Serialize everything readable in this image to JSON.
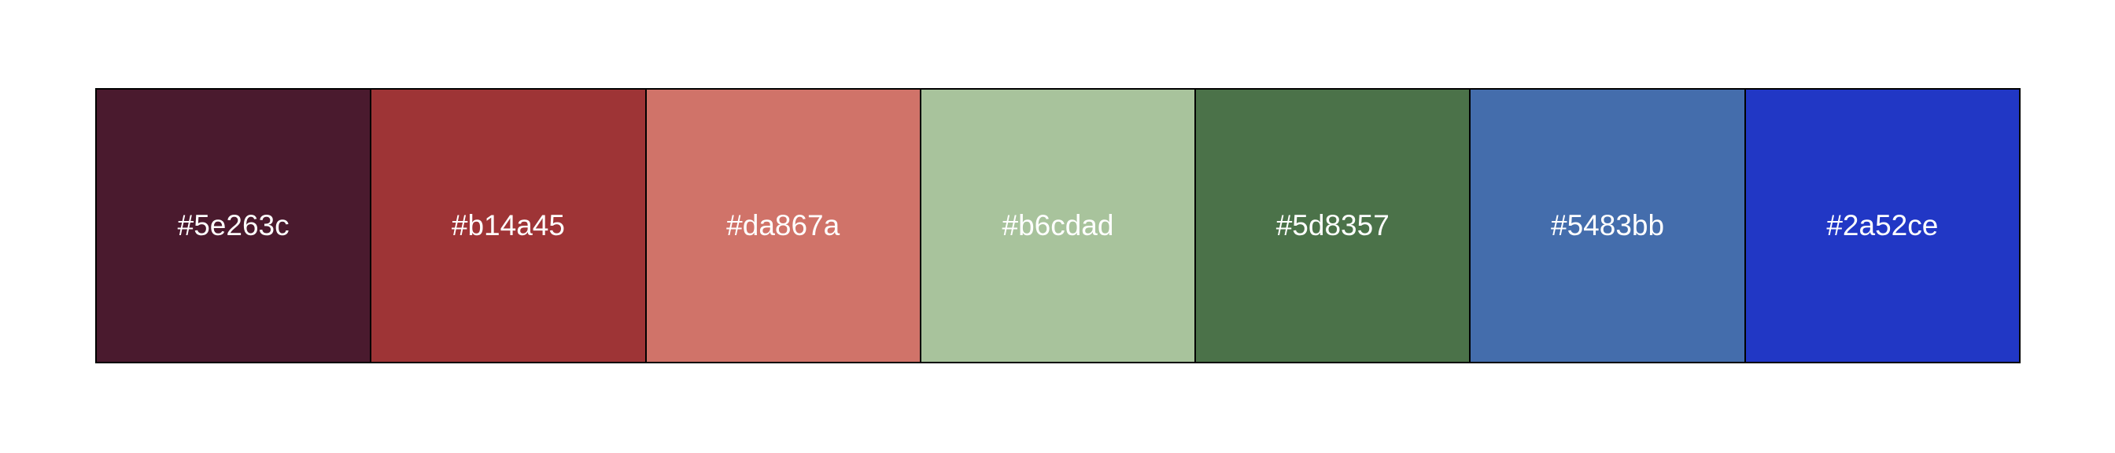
{
  "swatches": [
    {
      "label": "#5e263c",
      "color": "#4a1a2e"
    },
    {
      "label": "#b14a45",
      "color": "#9e3436"
    },
    {
      "label": "#da867a",
      "color": "#d07369"
    },
    {
      "label": "#b6cdad",
      "color": "#a8c39c"
    },
    {
      "label": "#5d8357",
      "color": "#4b7249"
    },
    {
      "label": "#5483bb",
      "color": "#446dac"
    },
    {
      "label": "#2a52ce",
      "color": "#2137c5"
    }
  ]
}
